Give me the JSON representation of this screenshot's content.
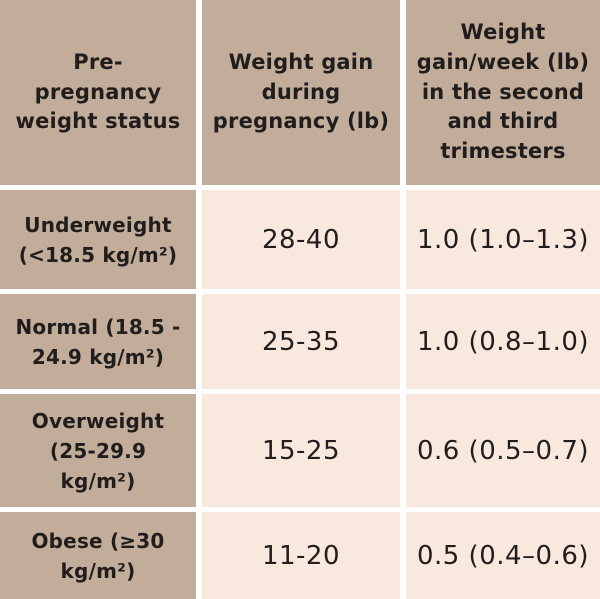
{
  "colors": {
    "cell_tan": "#c2ad9b",
    "cell_blush": "#f9e8de",
    "gutter_white": "#ffffff",
    "text_ink": "#211d1c"
  },
  "table": {
    "headers": {
      "status": "Pre-\npregnancy\nweight status",
      "gain": "Weight gain\nduring\npregnancy (lb)",
      "gain_week": "Weight\ngain/week (lb)\nin the second\nand third\ntrimesters"
    },
    "rows": [
      {
        "label": "Underweight\n(<18.5 kg/m²)",
        "gain": "28-40",
        "gain_week": "1.0 (1.0–1.3)"
      },
      {
        "label": "Normal (18.5 -\n24.9 kg/m²)",
        "gain": "25-35",
        "gain_week": "1.0 (0.8–1.0)"
      },
      {
        "label": "Overweight\n(25-29.9\nkg/m²)",
        "gain": "15-25",
        "gain_week": "0.6 (0.5–0.7)"
      },
      {
        "label": "Obese (≥30\nkg/m²)",
        "gain": "11-20",
        "gain_week": "0.5 (0.4–0.6)"
      }
    ]
  },
  "chart_data": {
    "type": "table",
    "columns": [
      "Pre-pregnancy weight status",
      "Weight gain during pregnancy (lb)",
      "Weight gain/week (lb) in the second and third trimesters"
    ],
    "rows": [
      [
        "Underweight (<18.5 kg/m²)",
        "28-40",
        "1.0 (1.0–1.3)"
      ],
      [
        "Normal (18.5 - 24.9 kg/m²)",
        "25-35",
        "1.0 (0.8–1.0)"
      ],
      [
        "Overweight (25-29.9 kg/m²)",
        "15-25",
        "0.6 (0.5–0.7)"
      ],
      [
        "Obese (≥30 kg/m²)",
        "11-20",
        "0.5 (0.4–0.6)"
      ]
    ]
  }
}
